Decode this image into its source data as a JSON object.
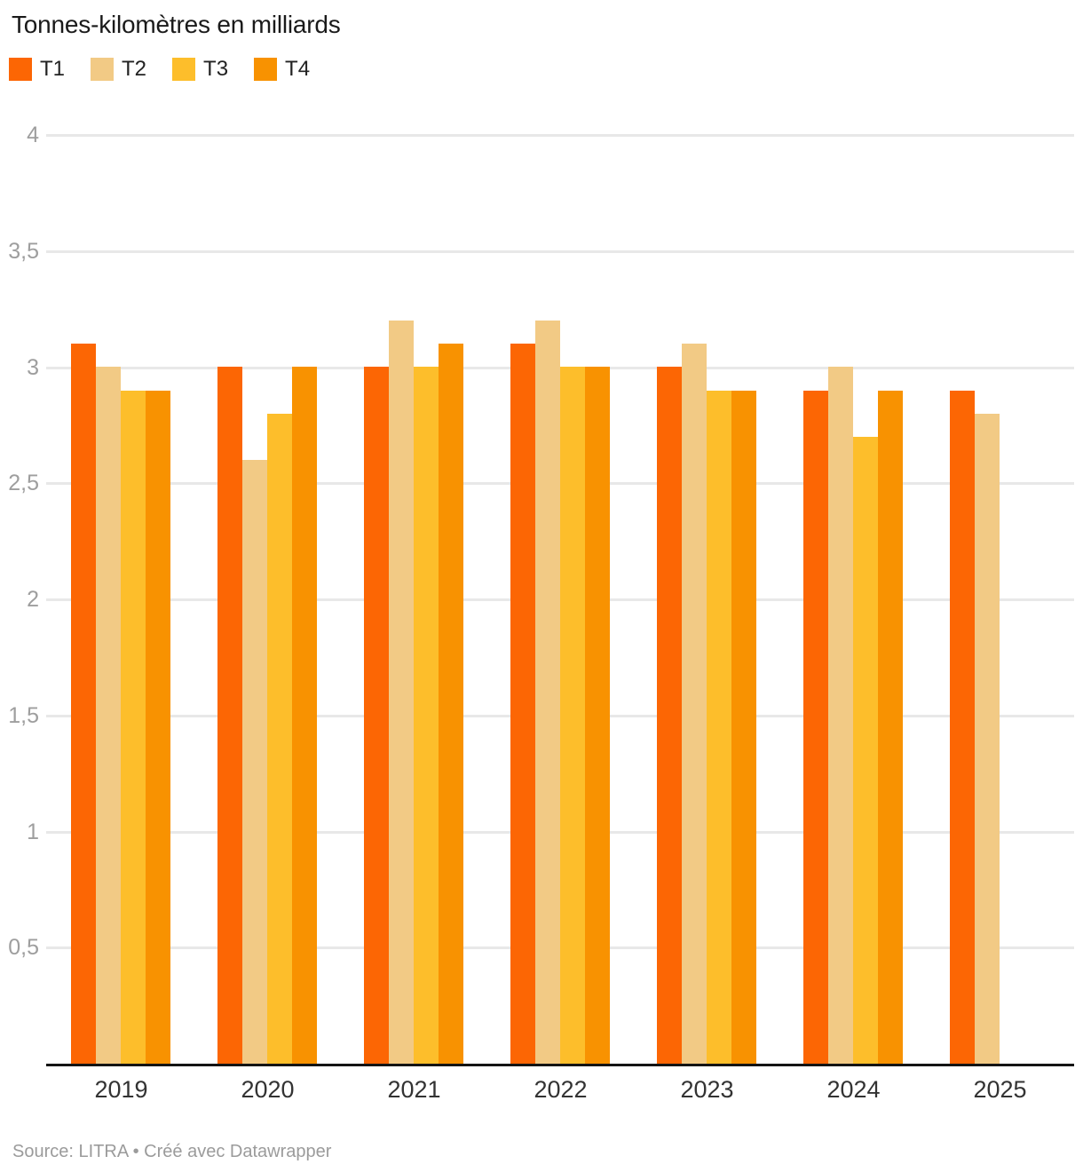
{
  "header": {
    "title": "Tonnes-kilomètres en milliards"
  },
  "chart_data": {
    "type": "bar",
    "title": "Tonnes-kilomètres en milliards",
    "categories": [
      "2019",
      "2020",
      "2021",
      "2022",
      "2023",
      "2024",
      "2025"
    ],
    "series": [
      {
        "name": "T1",
        "color": "#FC6604",
        "values": [
          3.1,
          3.0,
          3.0,
          3.1,
          3.0,
          2.9,
          2.9
        ]
      },
      {
        "name": "T2",
        "color": "#F2CA85",
        "values": [
          3.0,
          2.6,
          3.2,
          3.2,
          3.1,
          3.0,
          2.8
        ]
      },
      {
        "name": "T3",
        "color": "#FDBE2B",
        "values": [
          2.9,
          2.8,
          3.0,
          3.0,
          2.9,
          2.7,
          null
        ]
      },
      {
        "name": "T4",
        "color": "#F89201",
        "values": [
          2.9,
          3.0,
          3.1,
          3.0,
          2.9,
          2.9,
          null
        ]
      }
    ],
    "xlabel": "",
    "ylabel": "",
    "ylim": [
      0,
      4
    ],
    "yticks": [
      {
        "value": 4,
        "label": "4"
      },
      {
        "value": 3.5,
        "label": "3,5"
      },
      {
        "value": 3,
        "label": "3"
      },
      {
        "value": 2.5,
        "label": "2,5"
      },
      {
        "value": 2,
        "label": "2"
      },
      {
        "value": 1.5,
        "label": "1,5"
      },
      {
        "value": 1,
        "label": "1"
      },
      {
        "value": 0.5,
        "label": "0,5"
      }
    ],
    "grid": true,
    "legend_position": "top",
    "colors": {
      "gridline": "#e8e8e8",
      "axis_line": "#141414",
      "ytick_text": "#9e9e9e",
      "xtick_text": "#333333",
      "title_text": "#1a1a1a",
      "source_text": "#9b9b9b"
    }
  },
  "footer": {
    "source": "Source: LITRA • Créé avec Datawrapper"
  }
}
